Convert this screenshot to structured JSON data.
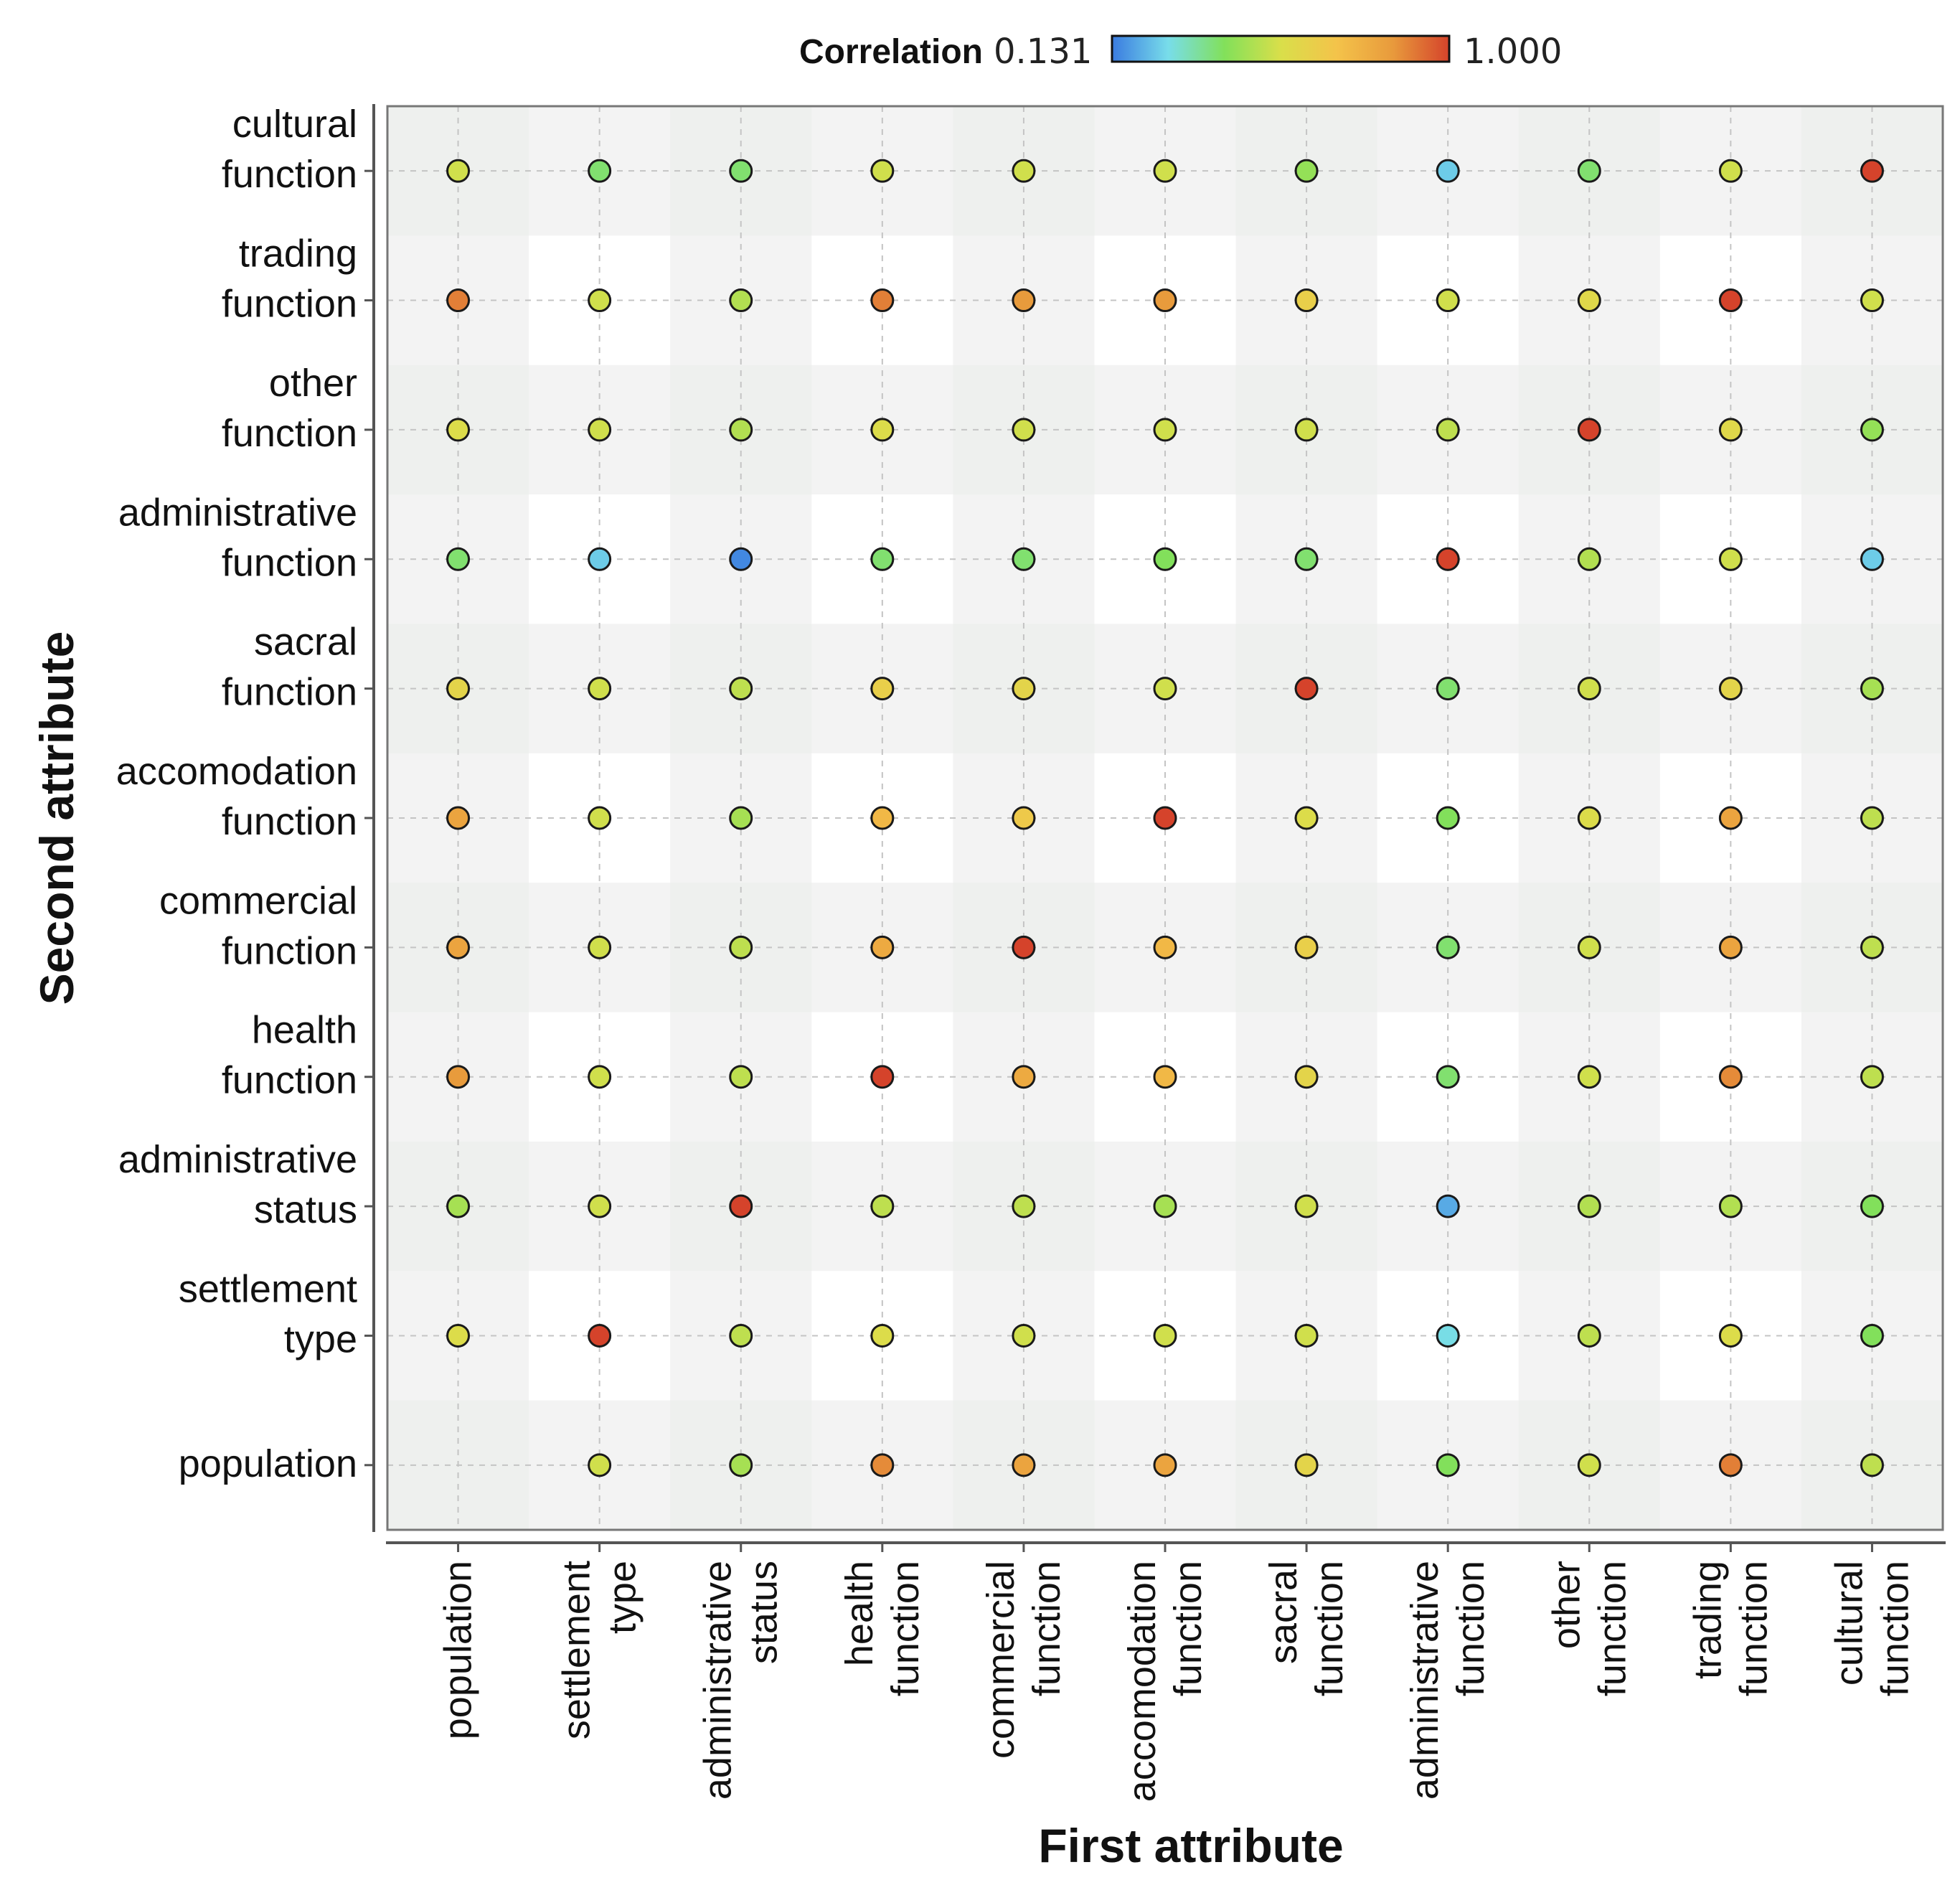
{
  "chart_data": {
    "type": "scatter",
    "title": "",
    "legend": {
      "label": "Correlation",
      "min_label": "0.131",
      "max_label": "1.000",
      "min": 0.131,
      "max": 1.0,
      "placement": "top-center",
      "colors": [
        "#3a7be0",
        "#78ddea",
        "#82e05a",
        "#d9df4a",
        "#f4c34a",
        "#e89a3c",
        "#d5432b"
      ]
    },
    "xlabel": "First attribute",
    "ylabel": "Second attribute",
    "x_categories": [
      "population",
      "settlement type",
      "administrative status",
      "health function",
      "commercial function",
      "accomodation function",
      "sacral function",
      "administrative function",
      "other function",
      "trading function",
      "cultural function"
    ],
    "x_tick_lines": [
      [
        "population"
      ],
      [
        "settlement",
        "type"
      ],
      [
        "administrative",
        "status"
      ],
      [
        "health",
        "function"
      ],
      [
        "commercial",
        "function"
      ],
      [
        "accomodation",
        "function"
      ],
      [
        "sacral",
        "function"
      ],
      [
        "administrative",
        "function"
      ],
      [
        "other",
        "function"
      ],
      [
        "trading",
        "function"
      ],
      [
        "cultural",
        "function"
      ]
    ],
    "y_categories": [
      "cultural function",
      "trading function",
      "other function",
      "administrative function",
      "sacral function",
      "accomodation function",
      "commercial function",
      "health function",
      "administrative status",
      "settlement type",
      "population"
    ],
    "y_tick_lines": [
      [
        "cultural",
        "function"
      ],
      [
        "trading",
        "function"
      ],
      [
        "other",
        "function"
      ],
      [
        "administrative",
        "function"
      ],
      [
        "sacral",
        "function"
      ],
      [
        "accomodation",
        "function"
      ],
      [
        "commercial",
        "function"
      ],
      [
        "health",
        "function"
      ],
      [
        "administrative",
        "status"
      ],
      [
        "settlement",
        "type"
      ],
      [
        "population"
      ]
    ],
    "values": [
      [
        0.55,
        0.4,
        0.4,
        0.55,
        0.55,
        0.55,
        0.45,
        0.25,
        0.4,
        0.55,
        1.0
      ],
      [
        0.9,
        0.55,
        0.5,
        0.9,
        0.85,
        0.85,
        0.65,
        0.55,
        0.6,
        1.0,
        0.55
      ],
      [
        0.58,
        0.55,
        0.5,
        0.58,
        0.55,
        0.55,
        0.55,
        0.52,
        1.0,
        0.6,
        0.45
      ],
      [
        0.4,
        0.25,
        0.15,
        0.4,
        0.4,
        0.42,
        0.4,
        1.0,
        0.5,
        0.55,
        0.25
      ],
      [
        0.62,
        0.55,
        0.52,
        0.65,
        0.62,
        0.55,
        1.0,
        0.4,
        0.55,
        0.62,
        0.48
      ],
      [
        0.82,
        0.55,
        0.48,
        0.75,
        0.68,
        1.0,
        0.58,
        0.42,
        0.58,
        0.82,
        0.52
      ],
      [
        0.82,
        0.55,
        0.52,
        0.8,
        1.0,
        0.75,
        0.65,
        0.4,
        0.55,
        0.82,
        0.52
      ],
      [
        0.85,
        0.55,
        0.52,
        1.0,
        0.8,
        0.75,
        0.62,
        0.4,
        0.55,
        0.88,
        0.52
      ],
      [
        0.48,
        0.55,
        1.0,
        0.52,
        0.52,
        0.48,
        0.55,
        0.2,
        0.5,
        0.5,
        0.42
      ],
      [
        0.58,
        1.0,
        0.52,
        0.58,
        0.55,
        0.55,
        0.55,
        0.28,
        0.52,
        0.58,
        0.42
      ],
      [
        null,
        0.55,
        0.48,
        0.88,
        0.82,
        0.82,
        0.62,
        0.42,
        0.55,
        0.9,
        0.52
      ]
    ]
  }
}
